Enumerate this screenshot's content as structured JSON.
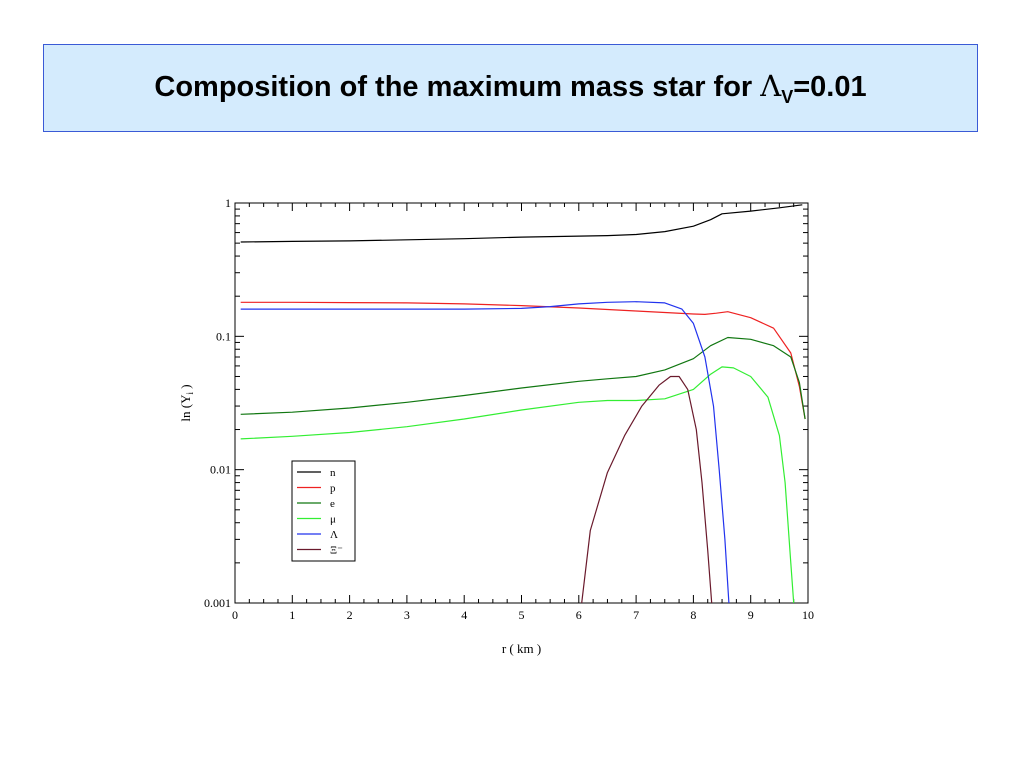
{
  "header": {
    "title_prefix": "Composition of the maximum mass star for ",
    "title_symbol": "Λ",
    "title_subscript": "V",
    "title_suffix": "=0.01",
    "background_color": "#d4ebfd",
    "border_color": "#3a5ad6"
  },
  "chart_data": {
    "type": "line",
    "title": "",
    "xlabel": "r ( km )",
    "ylabel": "ln (Y",
    "ylabel_subscript": "i",
    "ylabel_suffix": " )",
    "xlim": [
      0,
      10
    ],
    "ylim": [
      0.001,
      1
    ],
    "yscale": "log",
    "grid": false,
    "legend_position": "lower-left",
    "x_ticks": [
      "0",
      "1",
      "2",
      "3",
      "4",
      "5",
      "6",
      "7",
      "8",
      "9",
      "10"
    ],
    "y_ticks": [
      "0.001",
      "0.01",
      "0.1",
      "1"
    ],
    "series": [
      {
        "name": "n",
        "color": "#000000",
        "x": [
          0.1,
          1,
          2,
          3,
          4,
          5,
          6,
          6.5,
          7,
          7.5,
          8,
          8.3,
          8.5,
          9,
          9.5,
          9.9
        ],
        "y": [
          0.51,
          0.515,
          0.52,
          0.53,
          0.54,
          0.555,
          0.565,
          0.57,
          0.58,
          0.61,
          0.67,
          0.75,
          0.83,
          0.87,
          0.92,
          0.97
        ]
      },
      {
        "name": "p",
        "color": "#ee2222",
        "x": [
          0.1,
          1,
          2,
          3,
          4,
          5,
          6,
          7,
          7.5,
          8,
          8.2,
          8.4,
          8.6,
          9,
          9.4,
          9.7,
          9.85,
          9.95
        ],
        "y": [
          0.18,
          0.18,
          0.179,
          0.178,
          0.175,
          0.17,
          0.163,
          0.155,
          0.151,
          0.147,
          0.146,
          0.149,
          0.153,
          0.138,
          0.115,
          0.075,
          0.042,
          0.024
        ]
      },
      {
        "name": "e",
        "color": "#117711",
        "x": [
          0.1,
          1,
          2,
          3,
          4,
          5,
          6,
          6.5,
          7,
          7.5,
          8,
          8.3,
          8.6,
          9,
          9.4,
          9.7,
          9.85,
          9.95
        ],
        "y": [
          0.026,
          0.027,
          0.029,
          0.032,
          0.036,
          0.041,
          0.046,
          0.048,
          0.05,
          0.056,
          0.068,
          0.085,
          0.098,
          0.095,
          0.085,
          0.07,
          0.045,
          0.024
        ]
      },
      {
        "name": "μ",
        "color": "#33ee33",
        "x": [
          0.1,
          1,
          2,
          3,
          4,
          5,
          6,
          6.5,
          7,
          7.5,
          8,
          8.3,
          8.5,
          8.7,
          9,
          9.3,
          9.5,
          9.6,
          9.7,
          9.75
        ],
        "y": [
          0.017,
          0.0178,
          0.019,
          0.021,
          0.024,
          0.028,
          0.032,
          0.033,
          0.033,
          0.034,
          0.04,
          0.052,
          0.059,
          0.058,
          0.05,
          0.035,
          0.018,
          0.008,
          0.002,
          0.001
        ]
      },
      {
        "name": "Λ",
        "color": "#2233ee",
        "x": [
          0.1,
          1,
          2,
          3,
          4,
          5,
          5.5,
          6,
          6.5,
          7,
          7.5,
          7.8,
          8,
          8.2,
          8.35,
          8.45,
          8.55,
          8.62
        ],
        "y": [
          0.16,
          0.16,
          0.16,
          0.16,
          0.16,
          0.162,
          0.167,
          0.175,
          0.18,
          0.182,
          0.178,
          0.16,
          0.125,
          0.07,
          0.03,
          0.01,
          0.003,
          0.001
        ]
      },
      {
        "name": "Ξ⁻",
        "color": "#6a1a2c",
        "x": [
          6.05,
          6.2,
          6.5,
          6.8,
          7.1,
          7.4,
          7.6,
          7.75,
          7.9,
          8.05,
          8.15,
          8.25,
          8.32
        ],
        "y": [
          0.001,
          0.0035,
          0.0095,
          0.018,
          0.03,
          0.043,
          0.05,
          0.05,
          0.04,
          0.02,
          0.008,
          0.0025,
          0.001
        ]
      }
    ]
  }
}
